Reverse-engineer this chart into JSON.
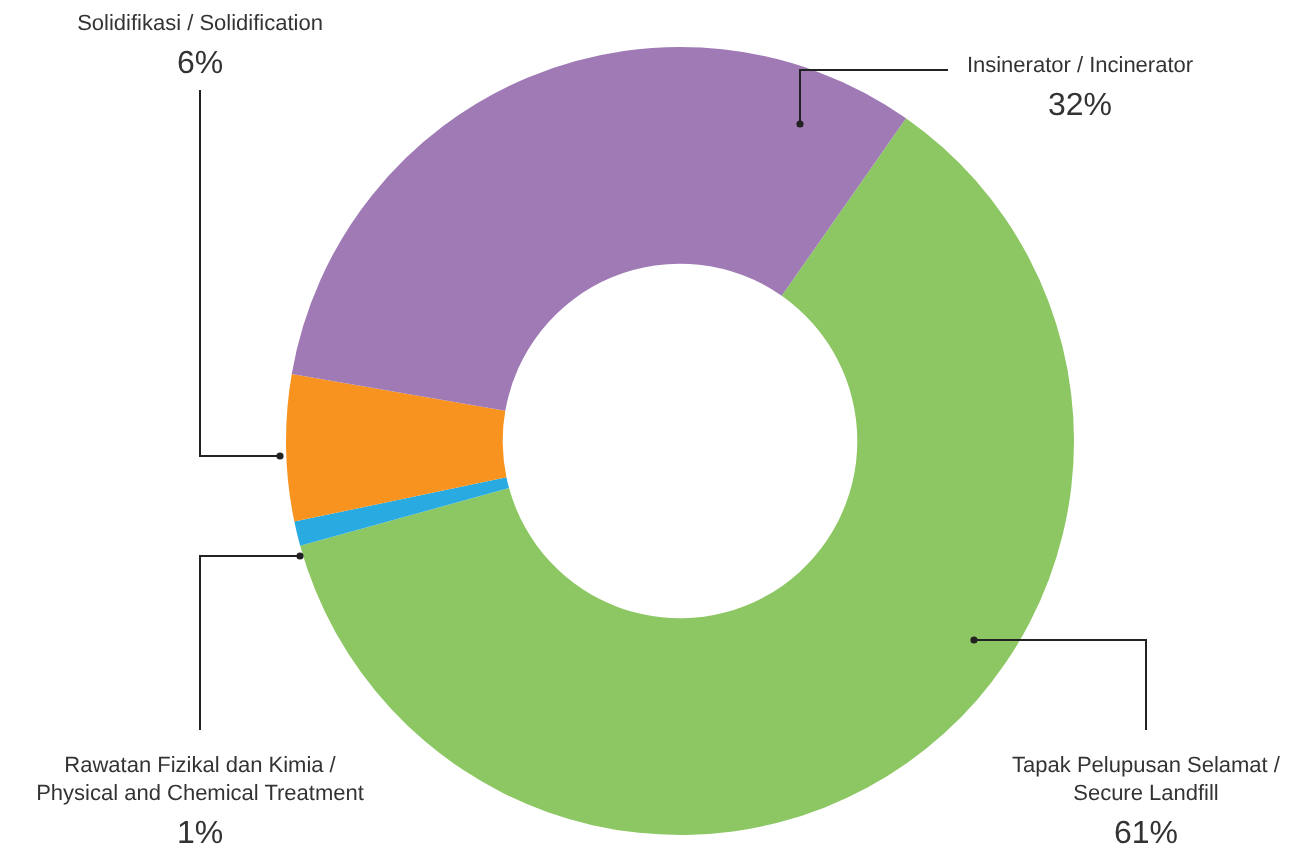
{
  "chart_data": {
    "type": "donut",
    "categories": [
      "Tapak Pelupusan Selamat / Secure Landfill",
      "Rawatan Fizikal dan Kimia / Physical and Chemical Treatment",
      "Solidifikasi / Solidification",
      "Insinerator / Incinerator"
    ],
    "values": [
      61,
      1,
      6,
      32
    ],
    "colors": [
      "#8dc764",
      "#29abe2",
      "#f7931e",
      "#9f7ab5"
    ],
    "value_labels": [
      "61%",
      "1%",
      "6%",
      "32%"
    ],
    "legend": false
  }
}
